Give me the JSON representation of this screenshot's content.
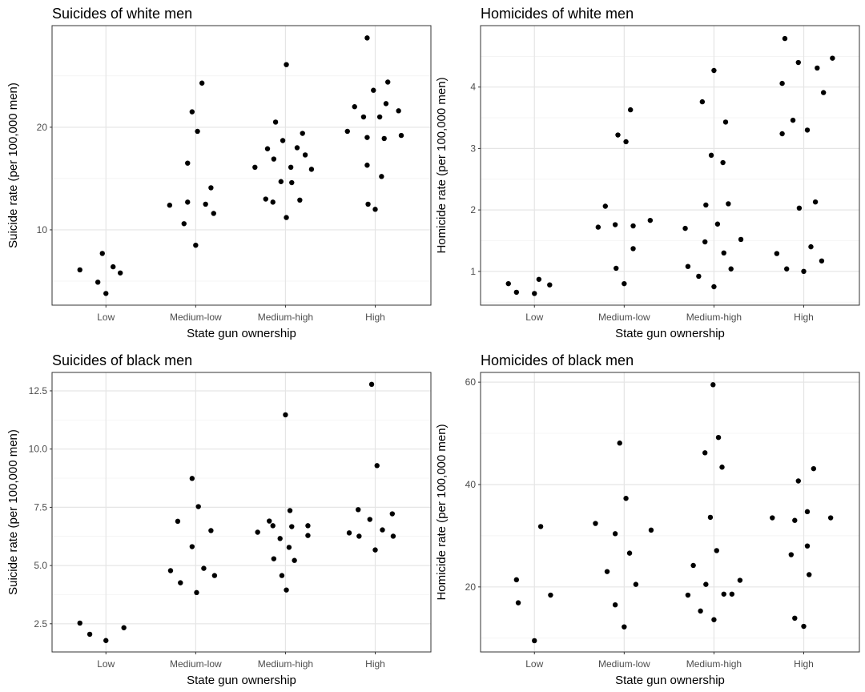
{
  "chart_data": [
    {
      "type": "scatter",
      "title": "Suicides of white men",
      "xlabel": "State gun ownership",
      "ylabel": "Suicide rate (per 100,000 men)",
      "categories": [
        "Low",
        "Medium-low",
        "Medium-high",
        "High"
      ],
      "xlim": [
        0.4,
        4.62
      ],
      "ylim": [
        2.66,
        29.9
      ],
      "yticks": [
        10,
        20
      ],
      "yticklabels": [
        "10",
        "20"
      ],
      "yminor": [
        5,
        15,
        25
      ],
      "grid": true,
      "points": [
        [
          0.71,
          6.1
        ],
        [
          0.91,
          4.9
        ],
        [
          0.96,
          7.7
        ],
        [
          1.08,
          6.4
        ],
        [
          1.16,
          5.8
        ],
        [
          1.0,
          3.8
        ],
        [
          1.71,
          12.4
        ],
        [
          1.87,
          10.6
        ],
        [
          1.91,
          12.7
        ],
        [
          1.91,
          16.5
        ],
        [
          1.96,
          21.5
        ],
        [
          2.02,
          19.6
        ],
        [
          2.0,
          8.5
        ],
        [
          2.07,
          24.3
        ],
        [
          2.11,
          12.5
        ],
        [
          2.17,
          14.1
        ],
        [
          2.2,
          11.6
        ],
        [
          2.66,
          16.1
        ],
        [
          2.78,
          13.0
        ],
        [
          2.8,
          17.9
        ],
        [
          2.86,
          12.7
        ],
        [
          2.87,
          16.9
        ],
        [
          2.89,
          20.5
        ],
        [
          2.95,
          14.7
        ],
        [
          2.97,
          18.7
        ],
        [
          3.01,
          26.1
        ],
        [
          3.01,
          11.2
        ],
        [
          3.06,
          16.1
        ],
        [
          3.07,
          14.6
        ],
        [
          3.13,
          18.0
        ],
        [
          3.16,
          12.9
        ],
        [
          3.19,
          19.4
        ],
        [
          3.22,
          17.3
        ],
        [
          3.29,
          15.9
        ],
        [
          3.69,
          19.6
        ],
        [
          3.77,
          22.0
        ],
        [
          3.87,
          21.0
        ],
        [
          3.91,
          28.7
        ],
        [
          3.91,
          19.0
        ],
        [
          3.91,
          16.3
        ],
        [
          3.92,
          12.5
        ],
        [
          3.98,
          23.6
        ],
        [
          4.0,
          12.0
        ],
        [
          4.05,
          21.0
        ],
        [
          4.07,
          15.2
        ],
        [
          4.1,
          18.9
        ],
        [
          4.12,
          22.3
        ],
        [
          4.14,
          24.4
        ],
        [
          4.26,
          21.6
        ],
        [
          4.29,
          19.2
        ]
      ]
    },
    {
      "type": "scatter",
      "title": "Homicides of white men",
      "xlabel": "State gun ownership",
      "ylabel": "Homicide rate (per 100,000 men)",
      "categories": [
        "Low",
        "Medium-low",
        "Medium-high",
        "High"
      ],
      "xlim": [
        0.4,
        4.62
      ],
      "ylim": [
        0.45,
        5.0
      ],
      "yticks": [
        1,
        2,
        3,
        4
      ],
      "yticklabels": [
        "1",
        "2",
        "3",
        "4"
      ],
      "yminor": [
        0.5,
        1.5,
        2.5,
        3.5,
        4.5
      ],
      "grid": true,
      "points": [
        [
          0.71,
          0.8
        ],
        [
          0.8,
          0.66
        ],
        [
          1.0,
          0.64
        ],
        [
          1.05,
          0.87
        ],
        [
          1.17,
          0.78
        ],
        [
          1.71,
          1.72
        ],
        [
          1.79,
          2.06
        ],
        [
          1.9,
          1.76
        ],
        [
          1.91,
          1.05
        ],
        [
          1.93,
          3.22
        ],
        [
          2.0,
          0.8
        ],
        [
          2.02,
          3.11
        ],
        [
          2.07,
          3.63
        ],
        [
          2.1,
          1.37
        ],
        [
          2.1,
          1.74
        ],
        [
          2.29,
          1.83
        ],
        [
          2.68,
          1.7
        ],
        [
          2.71,
          1.08
        ],
        [
          2.83,
          0.92
        ],
        [
          2.87,
          3.76
        ],
        [
          2.9,
          1.48
        ],
        [
          2.91,
          2.08
        ],
        [
          2.97,
          2.89
        ],
        [
          3.0,
          4.27
        ],
        [
          3.0,
          0.75
        ],
        [
          3.04,
          1.77
        ],
        [
          3.1,
          2.77
        ],
        [
          3.11,
          1.3
        ],
        [
          3.13,
          3.43
        ],
        [
          3.16,
          2.1
        ],
        [
          3.19,
          1.04
        ],
        [
          3.3,
          1.52
        ],
        [
          3.7,
          1.29
        ],
        [
          3.76,
          3.24
        ],
        [
          3.76,
          4.06
        ],
        [
          3.79,
          4.79
        ],
        [
          3.81,
          1.04
        ],
        [
          3.88,
          3.46
        ],
        [
          3.94,
          4.4
        ],
        [
          3.95,
          2.03
        ],
        [
          4.0,
          1.0
        ],
        [
          4.04,
          3.3
        ],
        [
          4.08,
          1.4
        ],
        [
          4.13,
          2.13
        ],
        [
          4.15,
          4.31
        ],
        [
          4.2,
          1.17
        ],
        [
          4.22,
          3.91
        ],
        [
          4.32,
          4.47
        ]
      ]
    },
    {
      "type": "scatter",
      "title": "Suicides of black men",
      "xlabel": "State gun ownership",
      "ylabel": "Suicide rate (per 100,000 men)",
      "categories": [
        "Low",
        "Medium-low",
        "Medium-high",
        "High"
      ],
      "xlim": [
        0.4,
        4.62
      ],
      "ylim": [
        1.29,
        13.29
      ],
      "yticks": [
        2.5,
        5.0,
        7.5,
        10.0,
        12.5
      ],
      "yticklabels": [
        "2.5",
        "5.0",
        "7.5",
        "10.0",
        "12.5"
      ],
      "yminor": [
        3.75,
        6.25,
        8.75,
        11.25
      ],
      "grid": true,
      "points": [
        [
          0.71,
          2.53
        ],
        [
          0.82,
          2.05
        ],
        [
          1.0,
          1.78
        ],
        [
          1.2,
          2.33
        ],
        [
          1.72,
          4.78
        ],
        [
          1.8,
          6.9
        ],
        [
          1.83,
          4.26
        ],
        [
          1.96,
          5.81
        ],
        [
          1.96,
          8.74
        ],
        [
          2.01,
          3.84
        ],
        [
          2.03,
          7.53
        ],
        [
          2.09,
          4.88
        ],
        [
          2.17,
          6.5
        ],
        [
          2.21,
          4.57
        ],
        [
          2.69,
          6.43
        ],
        [
          2.82,
          6.91
        ],
        [
          2.86,
          6.71
        ],
        [
          2.87,
          5.29
        ],
        [
          2.94,
          6.16
        ],
        [
          2.96,
          4.57
        ],
        [
          3.0,
          11.47
        ],
        [
          3.01,
          3.95
        ],
        [
          3.04,
          5.78
        ],
        [
          3.05,
          7.36
        ],
        [
          3.07,
          6.67
        ],
        [
          3.1,
          5.22
        ],
        [
          3.25,
          6.71
        ],
        [
          3.25,
          6.29
        ],
        [
          3.71,
          6.4
        ],
        [
          3.81,
          7.4
        ],
        [
          3.82,
          6.26
        ],
        [
          3.94,
          6.98
        ],
        [
          3.96,
          12.78
        ],
        [
          4.0,
          5.67
        ],
        [
          4.02,
          9.29
        ],
        [
          4.08,
          6.53
        ],
        [
          4.19,
          7.22
        ],
        [
          4.2,
          6.26
        ]
      ]
    },
    {
      "type": "scatter",
      "title": "Homicides of black men",
      "xlabel": "State gun ownership",
      "ylabel": "Homicide rate (per 100,000 men)",
      "categories": [
        "Low",
        "Medium-low",
        "Medium-high",
        "High"
      ],
      "xlim": [
        0.4,
        4.62
      ],
      "ylim": [
        7.3,
        61.9
      ],
      "yticks": [
        20,
        40,
        60
      ],
      "yticklabels": [
        "20",
        "40",
        "60"
      ],
      "yminor": [
        10,
        30,
        50
      ],
      "grid": true,
      "points": [
        [
          0.8,
          21.4
        ],
        [
          0.82,
          16.9
        ],
        [
          1.0,
          9.5
        ],
        [
          1.07,
          31.8
        ],
        [
          1.18,
          18.4
        ],
        [
          1.68,
          32.4
        ],
        [
          1.81,
          23.0
        ],
        [
          1.9,
          30.4
        ],
        [
          1.9,
          16.5
        ],
        [
          1.95,
          48.1
        ],
        [
          2.0,
          12.2
        ],
        [
          2.02,
          37.3
        ],
        [
          2.06,
          26.6
        ],
        [
          2.13,
          20.5
        ],
        [
          2.3,
          31.1
        ],
        [
          2.71,
          18.4
        ],
        [
          2.77,
          24.2
        ],
        [
          2.85,
          15.3
        ],
        [
          2.9,
          46.2
        ],
        [
          2.91,
          20.5
        ],
        [
          2.96,
          33.6
        ],
        [
          2.99,
          59.5
        ],
        [
          3.0,
          13.6
        ],
        [
          3.03,
          27.1
        ],
        [
          3.05,
          49.2
        ],
        [
          3.09,
          43.4
        ],
        [
          3.11,
          18.6
        ],
        [
          3.2,
          18.6
        ],
        [
          3.29,
          21.3
        ],
        [
          3.65,
          33.5
        ],
        [
          3.86,
          26.3
        ],
        [
          3.9,
          13.9
        ],
        [
          3.9,
          33.0
        ],
        [
          3.94,
          40.7
        ],
        [
          4.0,
          12.3
        ],
        [
          4.04,
          34.7
        ],
        [
          4.04,
          28.0
        ],
        [
          4.06,
          22.4
        ],
        [
          4.11,
          43.1
        ],
        [
          4.3,
          33.5
        ]
      ]
    }
  ]
}
